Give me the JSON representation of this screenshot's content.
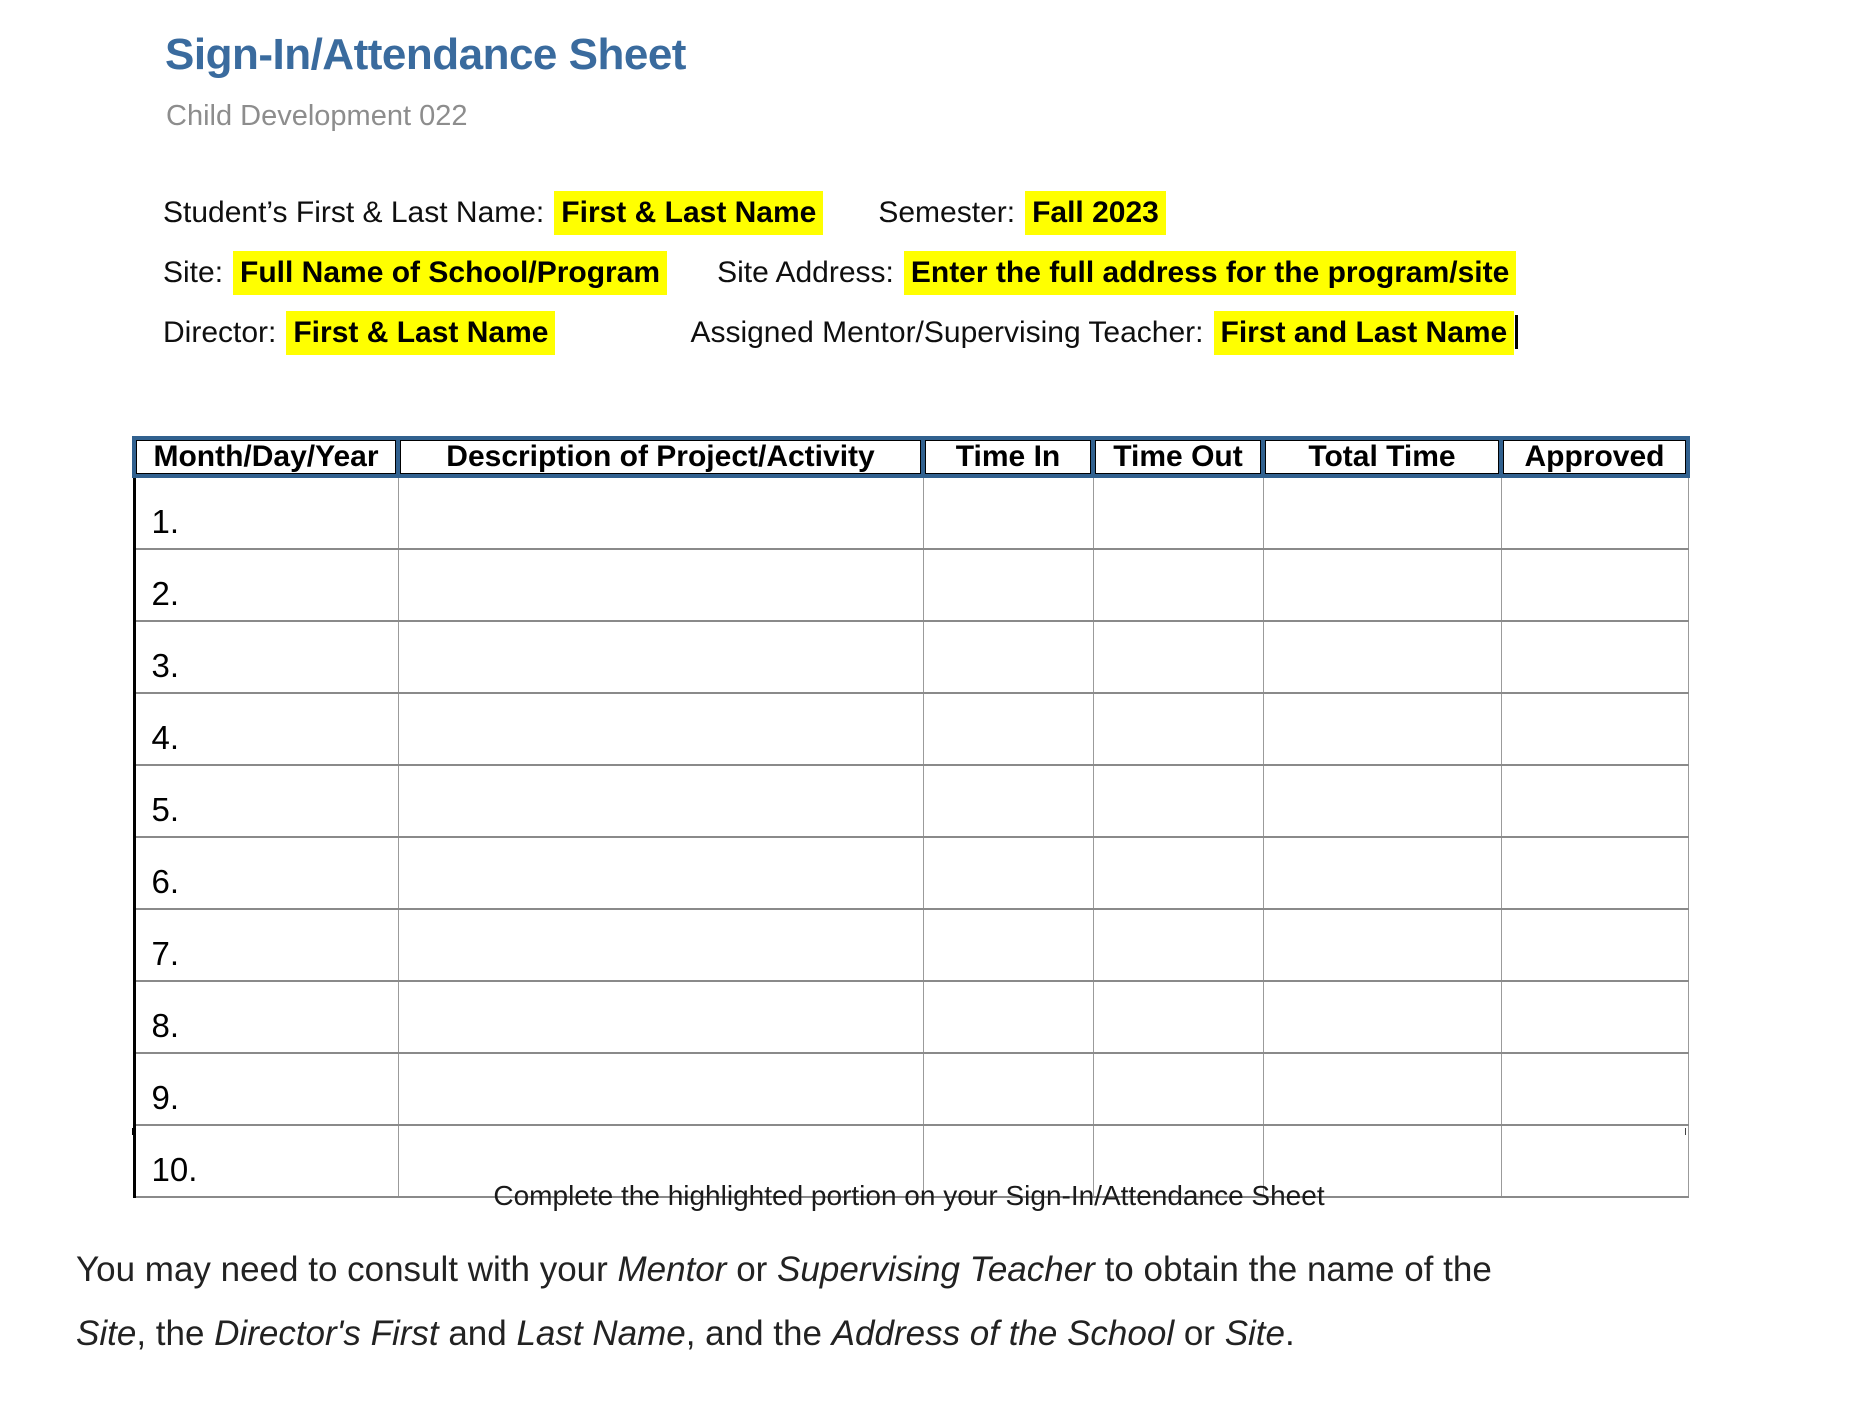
{
  "page": {
    "title": "Sign-In/Attendance Sheet",
    "subtitle": "Child Development 022"
  },
  "info": {
    "student_label": "Student’s First & Last Name:",
    "student_value": "First & Last Name",
    "semester_label": "Semester:",
    "semester_value": "Fall 2023",
    "site_label": "Site:",
    "site_value": "Full Name of School/Program",
    "site_address_label": "Site Address:",
    "site_address_value": "Enter the full address for the program/site",
    "director_label": "Director:",
    "director_value": "First & Last Name",
    "mentor_label": "Assigned Mentor/Supervising Teacher:",
    "mentor_value": "First and Last Name"
  },
  "table": {
    "columns": [
      "Month/Day/Year",
      "Description of Project/Activity",
      "Time In",
      "Time Out",
      "Total Time",
      "Approved"
    ],
    "row_numbers": [
      "1.",
      "2.",
      "3.",
      "4.",
      "5.",
      "6.",
      "7.",
      "8.",
      "9.",
      "10."
    ]
  },
  "caption": "Complete the highlighted portion on your Sign-In/Attendance Sheet",
  "note": {
    "segments": [
      {
        "text": "You may need to consult with your "
      },
      {
        "text": "Mentor",
        "italic": true
      },
      {
        "text": " or "
      },
      {
        "text": "Supervising Teacher",
        "italic": true
      },
      {
        "text": " to obtain the name of the"
      },
      {
        "break": true
      },
      {
        "text": "Site",
        "italic": true
      },
      {
        "text": ", the "
      },
      {
        "text": "Director's First",
        "italic": true
      },
      {
        "text": " and "
      },
      {
        "text": "Last Name",
        "italic": true
      },
      {
        "text": ", and the "
      },
      {
        "text": "Address of the School",
        "italic": true
      },
      {
        "text": " or "
      },
      {
        "text": "Site",
        "italic": true
      },
      {
        "text": "."
      }
    ]
  },
  "colors": {
    "title_blue": "#3a6b9e",
    "table_header_blue": "#31618f",
    "highlight_yellow": "#ffff00"
  }
}
